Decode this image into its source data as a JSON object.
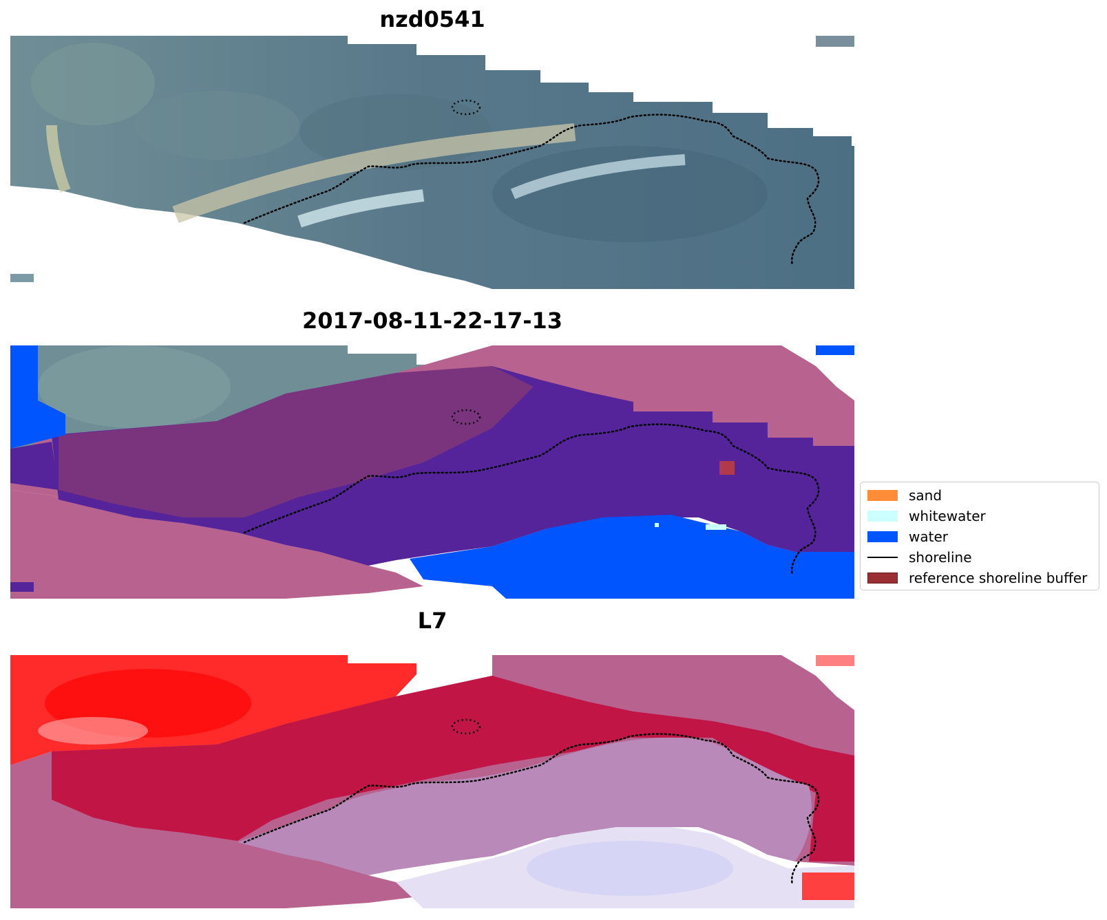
{
  "panels": [
    {
      "title": "nzd0541"
    },
    {
      "title": "2017-08-11-22-17-13"
    },
    {
      "title": "L7"
    }
  ],
  "legend": {
    "items": [
      {
        "label": "sand",
        "color": "#ff8c37",
        "kind": "patch"
      },
      {
        "label": "whitewater",
        "color": "#ccffff",
        "kind": "patch"
      },
      {
        "label": "water",
        "color": "#0055ff",
        "kind": "patch"
      },
      {
        "label": "shoreline",
        "color": "#000000",
        "kind": "line"
      },
      {
        "label": "reference shoreline buffer",
        "color": "#9a2f33",
        "kind": "patch"
      }
    ]
  },
  "colors": {
    "imagery_base": "#5f7f8c",
    "imagery_dark": "#3e5e70",
    "imagery_light": "#9fb4b0",
    "buffer_overlay": "#b8628f",
    "classified_dark": "#55249a",
    "water": "#0055ff",
    "index_red": "#ff1a1a",
    "index_crimson": "#c01545",
    "index_lavender": "#b98ab9"
  }
}
